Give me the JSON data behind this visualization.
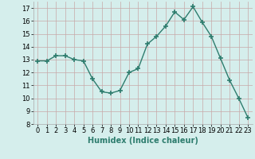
{
  "x": [
    0,
    1,
    2,
    3,
    4,
    5,
    6,
    7,
    8,
    9,
    10,
    11,
    12,
    13,
    14,
    15,
    16,
    17,
    18,
    19,
    20,
    21,
    22,
    23
  ],
  "y": [
    12.9,
    12.9,
    13.3,
    13.3,
    13.0,
    12.9,
    11.5,
    10.5,
    10.4,
    10.6,
    12.0,
    12.3,
    14.2,
    14.8,
    15.6,
    16.7,
    16.1,
    17.1,
    15.9,
    14.8,
    13.1,
    11.4,
    10.0,
    8.5
  ],
  "line_color": "#2e7d6e",
  "marker": "+",
  "marker_size": 4,
  "marker_lw": 1.2,
  "line_width": 1.0,
  "bg_color": "#d5eeec",
  "grid_color": "#c8a8a8",
  "xlabel": "Humidex (Indice chaleur)",
  "xlabel_fontsize": 7,
  "tick_fontsize": 6,
  "ylim": [
    8,
    17.5
  ],
  "xlim": [
    -0.5,
    23.5
  ],
  "yticks": [
    8,
    9,
    10,
    11,
    12,
    13,
    14,
    15,
    16,
    17
  ],
  "xticks": [
    0,
    1,
    2,
    3,
    4,
    5,
    6,
    7,
    8,
    9,
    10,
    11,
    12,
    13,
    14,
    15,
    16,
    17,
    18,
    19,
    20,
    21,
    22,
    23
  ]
}
